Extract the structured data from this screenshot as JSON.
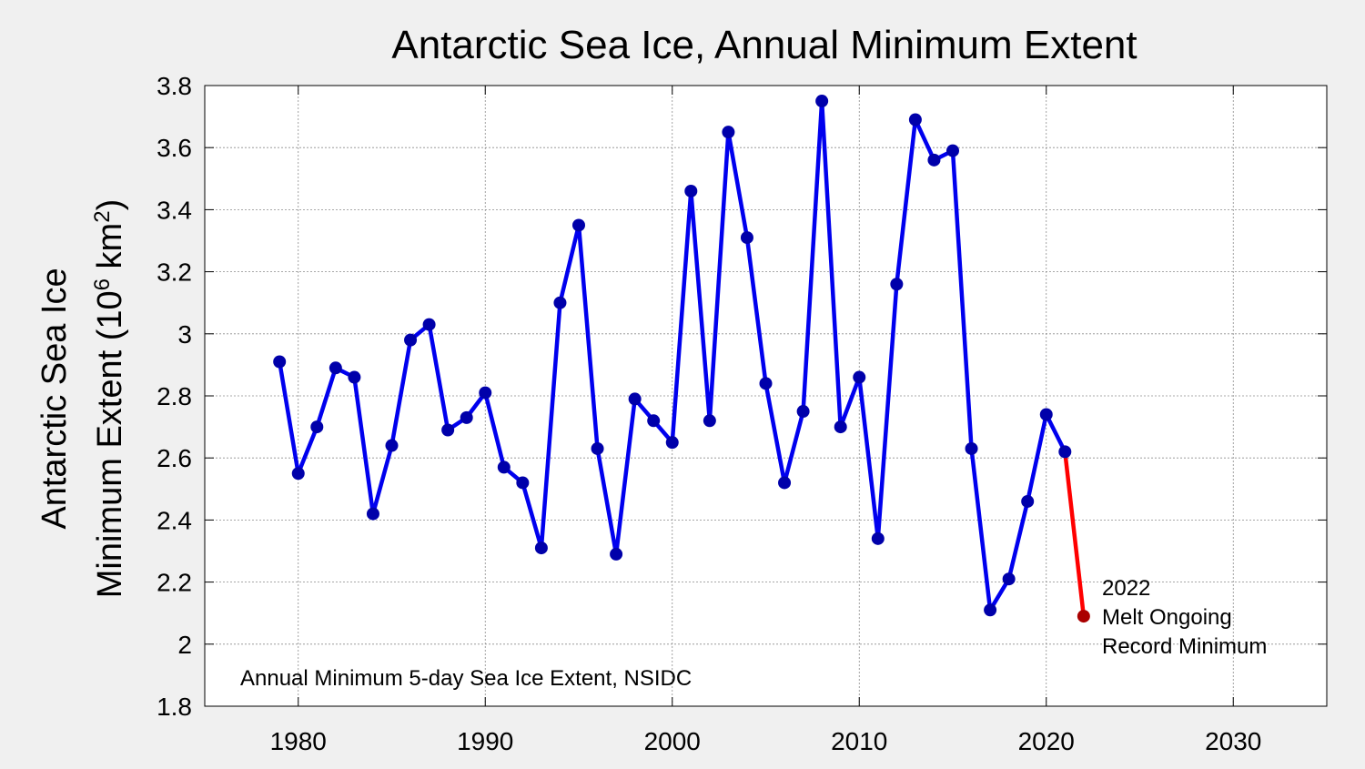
{
  "chart_data": {
    "type": "line",
    "title": "Antarctic Sea Ice, Annual Minimum Extent",
    "ylabel_line1": "Antarctic Sea Ice",
    "ylabel_line2_prefix": "Minimum Extent (10",
    "ylabel_sup1": "6",
    "ylabel_mid": " km",
    "ylabel_sup2": "2",
    "ylabel_suffix": ")",
    "xlabel": "",
    "xlim": [
      1975,
      2035
    ],
    "ylim": [
      1.8,
      3.8
    ],
    "x_ticks": [
      "1980",
      "1990",
      "2000",
      "2010",
      "2020",
      "2030"
    ],
    "y_ticks": [
      "1.8",
      "2",
      "2.2",
      "2.4",
      "2.6",
      "2.8",
      "3",
      "3.2",
      "3.4",
      "3.6",
      "3.8"
    ],
    "grid": true,
    "colors": {
      "series": "#0000ee",
      "marker": "#0000aa",
      "latest_line": "#ff0000",
      "latest_marker": "#aa0000"
    },
    "series": [
      {
        "x": [
          1979,
          1980,
          1981,
          1982,
          1983,
          1984,
          1985,
          1986,
          1987,
          1988,
          1989,
          1990,
          1991,
          1992,
          1993,
          1994,
          1995,
          1996,
          1997,
          1998,
          1999,
          2000,
          2001,
          2002,
          2003,
          2004,
          2005,
          2006,
          2007,
          2008,
          2009,
          2010,
          2011,
          2012,
          2013,
          2014,
          2015,
          2016,
          2017,
          2018,
          2019,
          2020,
          2021
        ],
        "values": [
          2.91,
          2.55,
          2.7,
          2.89,
          2.86,
          2.42,
          2.64,
          2.98,
          3.03,
          2.69,
          2.73,
          2.81,
          2.57,
          2.52,
          2.31,
          3.1,
          3.35,
          2.63,
          2.29,
          2.79,
          2.72,
          2.65,
          3.46,
          2.72,
          3.65,
          3.31,
          2.84,
          2.52,
          2.75,
          3.75,
          2.7,
          2.86,
          2.34,
          3.16,
          3.69,
          3.56,
          3.59,
          2.63,
          2.11,
          2.21,
          2.46,
          2.74,
          2.62
        ]
      },
      {
        "x": [
          2021,
          2022
        ],
        "values": [
          2.62,
          2.09
        ]
      }
    ],
    "annotation_lines": [
      "2022",
      "Melt Ongoing",
      "Record Minimum"
    ],
    "source_note": "Annual Minimum 5-day Sea Ice Extent, NSIDC"
  }
}
